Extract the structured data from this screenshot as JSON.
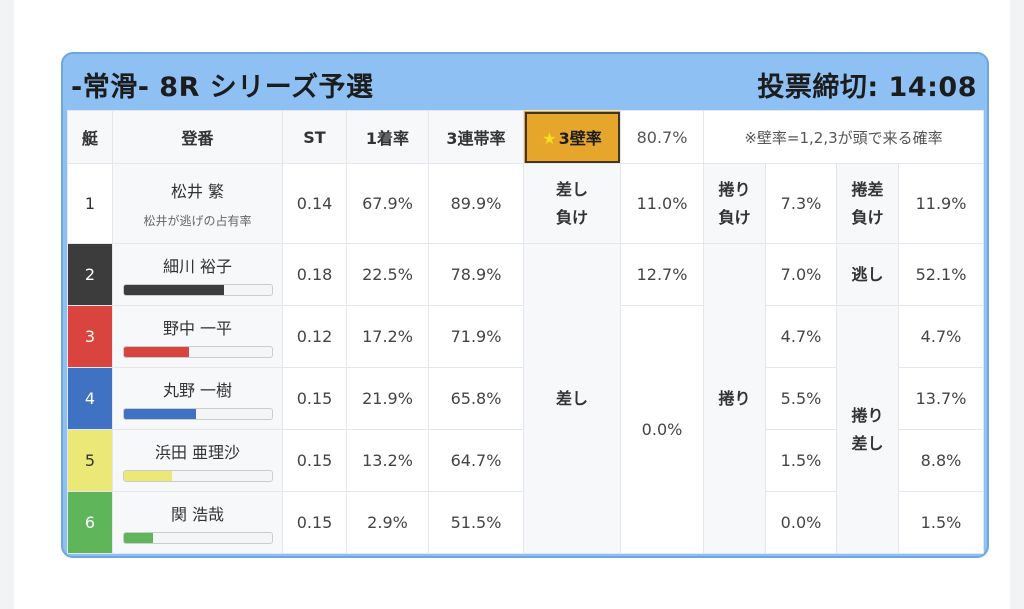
{
  "header": {
    "title": "-常滑- 8R シリーズ予選",
    "deadline": "投票締切: 14:08"
  },
  "columns": {
    "lane": "艇",
    "racer": "登番",
    "st": "ST",
    "win": "1着率",
    "top3": "3連帯率",
    "wall_label": "3壁率",
    "wall_value": "80.7%",
    "note": "※壁率=1,2,3が頭で来る確率"
  },
  "rows": [
    {
      "lane": "1",
      "name": "松井 繁",
      "sub": "松井が逃げの占有率",
      "st": "0.14",
      "win": "67.9%",
      "top3": "89.9%"
    },
    {
      "lane": "2",
      "name": "細川 裕子",
      "st": "0.18",
      "win": "22.5%",
      "top3": "78.9%",
      "bar_pct": 68,
      "bar_color": "#3c3c3c"
    },
    {
      "lane": "3",
      "name": "野中 一平",
      "st": "0.12",
      "win": "17.2%",
      "top3": "71.9%",
      "bar_pct": 44,
      "bar_color": "#d9443e"
    },
    {
      "lane": "4",
      "name": "丸野 一樹",
      "st": "0.15",
      "win": "21.9%",
      "top3": "65.8%",
      "bar_pct": 49,
      "bar_color": "#3f72c2"
    },
    {
      "lane": "5",
      "name": "浜田 亜理沙",
      "st": "0.15",
      "win": "13.2%",
      "top3": "64.7%",
      "bar_pct": 33,
      "bar_color": "#ece878"
    },
    {
      "lane": "6",
      "name": "関 浩哉",
      "st": "0.15",
      "win": "2.9%",
      "top3": "51.5%",
      "bar_pct": 20,
      "bar_color": "#5fb55a"
    }
  ],
  "kimarite": {
    "sashi_make": {
      "line1": "差し",
      "line2": "負け",
      "value": "11.0%"
    },
    "makuri_make": {
      "line1": "捲り",
      "line2": "負け",
      "value": "7.3%"
    },
    "makurisashi_make": {
      "line1": "捲差",
      "line2": "負け",
      "value": "11.9%"
    },
    "sashi": {
      "label": "差し",
      "lane2": "12.7%",
      "value": "0.0%"
    },
    "makuri": {
      "label": "捲り",
      "lane2": "7.0%",
      "lane3": "4.7%",
      "lane4": "5.5%",
      "lane5": "1.5%",
      "lane6": "0.0%"
    },
    "nige": {
      "label": "逃し",
      "value": "52.1%"
    },
    "makurisashi": {
      "line1": "捲り",
      "line2": "差し",
      "lane3": "4.7%",
      "lane4": "13.7%",
      "lane5": "8.8%",
      "lane6": "1.5%"
    }
  },
  "colors": {
    "header_bg": "#8ec0f4",
    "wall_highlight": "#e6a62b"
  }
}
